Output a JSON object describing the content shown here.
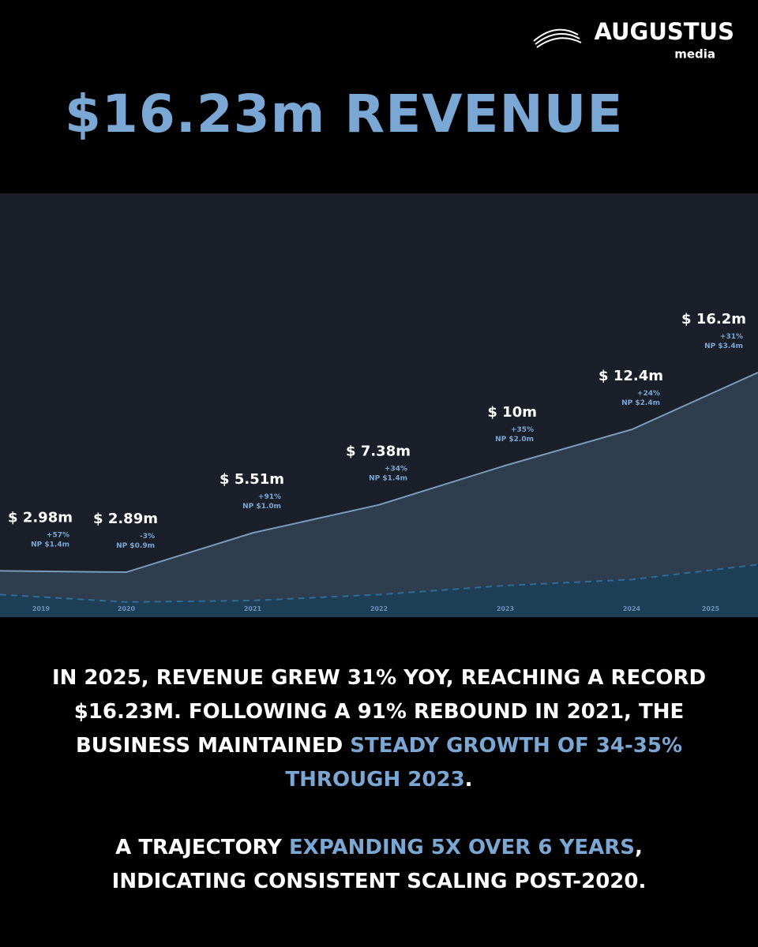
{
  "brand": {
    "name": "AUGUSTUS",
    "sub": "media"
  },
  "headline": "$16.23m REVENUE",
  "chart_data": {
    "type": "area",
    "categories": [
      "2019",
      "2020",
      "2021",
      "2022",
      "2023",
      "2024",
      "2025"
    ],
    "series": [
      {
        "name": "Revenue",
        "color": "#7a9cbc",
        "fill": "#2e3e4f",
        "values": [
          2.98,
          2.89,
          5.51,
          7.38,
          10,
          12.4,
          16.2
        ],
        "value_labels": [
          "$ 2.98m",
          "$ 2.89m",
          "$ 5.51m",
          "$ 7.38m",
          "$ 10m",
          "$ 12.4m",
          "$ 16.2m"
        ]
      },
      {
        "name": "Growth",
        "values": [
          57,
          -3,
          91,
          34,
          35,
          24,
          31
        ],
        "value_labels": [
          "+57%",
          "-3%",
          "+91%",
          "+34%",
          "+35%",
          "+24%",
          "+31%"
        ]
      },
      {
        "name": "NP",
        "color": "#2e6d99",
        "fill": "#1f3f57",
        "values": [
          1.4,
          0.9,
          1.0,
          1.4,
          2.0,
          2.4,
          3.4
        ],
        "value_labels": [
          "NP $1.4m",
          "NP $0.9m",
          "NP $1.0m",
          "NP $1.4m",
          "NP $2.0m",
          "NP $2.4m",
          "NP $3.4m"
        ]
      }
    ]
  },
  "body": {
    "paragraphs": [
      [
        {
          "text": "IN 2025, REVENUE GREW 31% YOY, REACHING A RECORD $16.23M. FOLLOWING A 91% REBOUND IN 2021, THE BUSINESS MAINTAINED ",
          "highlight": false
        },
        {
          "text": "STEADY GROWTH OF 34-35% THROUGH 2023",
          "highlight": true
        },
        {
          "text": ".",
          "highlight": false
        }
      ],
      [
        {
          "text": "A TRAJECTORY ",
          "highlight": false
        },
        {
          "text": "EXPANDING 5X OVER 6 YEARS",
          "highlight": true
        },
        {
          "text": ", INDICATING CONSISTENT SCALING POST-2020.",
          "highlight": false
        }
      ]
    ]
  }
}
